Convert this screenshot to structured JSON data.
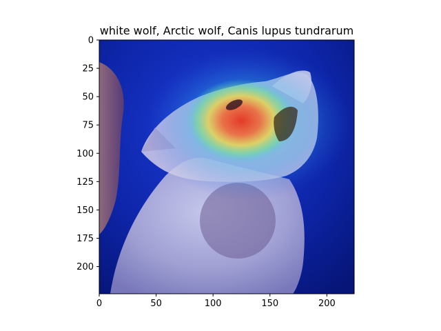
{
  "figure": {
    "title": "white wolf, Arctic wolf, Canis lupus tundrarum",
    "image_subject": "white-wolf-howling-heatmap-overlay",
    "x_axis": {
      "range": [
        0,
        224
      ],
      "ticks": [
        {
          "value": 0,
          "label": "0"
        },
        {
          "value": 50,
          "label": "50"
        },
        {
          "value": 100,
          "label": "100"
        },
        {
          "value": 150,
          "label": "150"
        },
        {
          "value": 200,
          "label": "200"
        }
      ]
    },
    "y_axis": {
      "range": [
        0,
        224
      ],
      "inverted": true,
      "ticks": [
        {
          "value": 0,
          "label": "0"
        },
        {
          "value": 25,
          "label": "25"
        },
        {
          "value": 50,
          "label": "50"
        },
        {
          "value": 75,
          "label": "75"
        },
        {
          "value": 100,
          "label": "100"
        },
        {
          "value": 125,
          "label": "125"
        },
        {
          "value": 150,
          "label": "150"
        },
        {
          "value": 175,
          "label": "175"
        },
        {
          "value": 200,
          "label": "200"
        }
      ]
    },
    "colors": {
      "heatmap_low": "#0a1a8c",
      "heatmap_mid": "#3fd1d8",
      "heatmap_high": "#e83a2a",
      "fur": "#c9c6e6",
      "background": "#0b1f9a"
    }
  }
}
